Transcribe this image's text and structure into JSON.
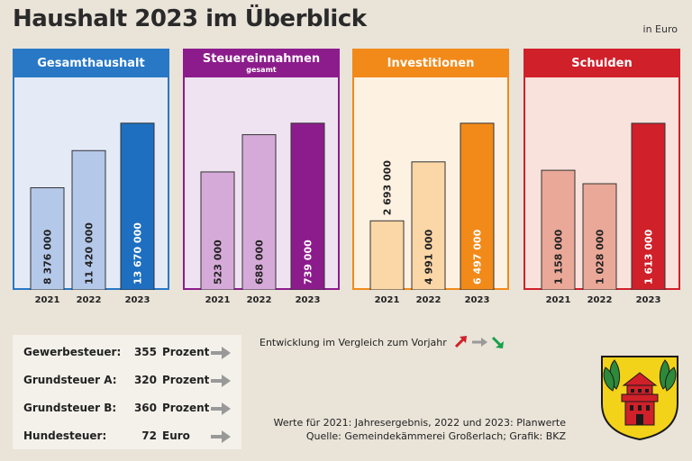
{
  "title": "Haushalt 2023 im Überblick",
  "unit_note": "in Euro",
  "chart_data": [
    {
      "type": "bar",
      "title": "Gesamthaushalt",
      "subtitle": "",
      "categories": [
        "2021",
        "2022",
        "2023"
      ],
      "values": [
        8376000,
        11420000,
        13670000
      ],
      "labels": [
        "8 376 000",
        "11 420 000",
        "13 670 000"
      ],
      "ylim": [
        0,
        15500000
      ],
      "colors": {
        "head": "#2878c6",
        "bg": "#e4ebf7",
        "border": "#2878c6",
        "bars": [
          "#b4c8ea",
          "#b4c8ea",
          "#1e6fc0"
        ]
      }
    },
    {
      "type": "bar",
      "title": "Steuereinnahmen",
      "subtitle": "gesamt",
      "categories": [
        "2021",
        "2022",
        "2023"
      ],
      "values": [
        523000,
        688000,
        739000
      ],
      "labels": [
        "523 000",
        "688 000",
        "739 000"
      ],
      "ylim": [
        0,
        838000
      ],
      "colors": {
        "head": "#8c1c8c",
        "bg": "#efe3f1",
        "border": "#8c1c8c",
        "bars": [
          "#d6aad8",
          "#d6aad8",
          "#8c1c8c"
        ]
      }
    },
    {
      "type": "bar",
      "title": "Investitionen",
      "subtitle": "",
      "categories": [
        "2021",
        "2022",
        "2023"
      ],
      "values": [
        2693000,
        4991000,
        6497000
      ],
      "labels": [
        "2 693 000",
        "4 991 000",
        "6 497 000"
      ],
      "ylim": [
        0,
        7370000
      ],
      "colors": {
        "head": "#f28a1a",
        "bg": "#fdf1e2",
        "border": "#f28a1a",
        "bars": [
          "#fbd6a6",
          "#fbd6a6",
          "#f28a1a"
        ]
      }
    },
    {
      "type": "bar",
      "title": "Schulden",
      "subtitle": "",
      "categories": [
        "2021",
        "2022",
        "2023"
      ],
      "values": [
        1158000,
        1028000,
        1613000
      ],
      "labels": [
        "1 158 000",
        "1 028 000",
        "1 613 000"
      ],
      "ylim": [
        0,
        1830000
      ],
      "colors": {
        "head": "#d0202a",
        "bg": "#f9e2dc",
        "border": "#d0202a",
        "bars": [
          "#eaa898",
          "#eaa898",
          "#d0202a"
        ]
      }
    }
  ],
  "legend": {
    "text": "Entwicklung im Vergleich zum Vorjahr",
    "up_color": "#d0202a",
    "flat_color": "#999999",
    "down_color": "#1aa04a"
  },
  "taxes": [
    {
      "name": "Gewerbesteuer:",
      "value": "355",
      "unit": "Prozent"
    },
    {
      "name": "Grundsteuer A:",
      "value": "320",
      "unit": "Prozent"
    },
    {
      "name": "Grundsteuer B:",
      "value": "360",
      "unit": "Prozent"
    },
    {
      "name": "Hundesteuer:",
      "value": "72",
      "unit": "Euro"
    }
  ],
  "notes": {
    "line1": "Werte für 2021: Jahresergebnis, 2022 und 2023: Planwerte",
    "line2": "Quelle: Gemeindekämmerei Großerlach; Grafik: BKZ"
  }
}
